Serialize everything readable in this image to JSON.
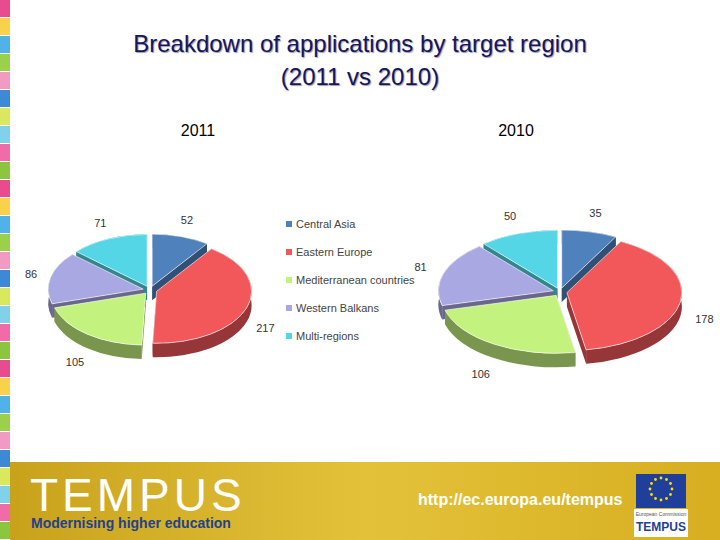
{
  "title": [
    "Breakdown of applications by target region",
    "(2011 vs 2010)"
  ],
  "chart_data": [
    {
      "type": "pie",
      "title": "2011",
      "categories": [
        "Central Asia",
        "Eastern Europe",
        "Mediterranean countries",
        "Western Balkans",
        "Multi-regions"
      ],
      "values": [
        52,
        217,
        105,
        86,
        71
      ],
      "colors": [
        "#4f81bd",
        "#f2575a",
        "#c4f27e",
        "#aaa8e2",
        "#55d6e6"
      ],
      "data_labels": true,
      "legend": "center"
    },
    {
      "type": "pie",
      "title": "2010",
      "categories": [
        "Central Asia",
        "Eastern Europe",
        "Mediterranean countries",
        "Western Balkans",
        "Multi-regions"
      ],
      "values": [
        35,
        178,
        106,
        81,
        50
      ],
      "colors": [
        "#4f81bd",
        "#f2575a",
        "#c4f27e",
        "#aaa8e2",
        "#55d6e6"
      ],
      "data_labels": true
    }
  ],
  "footer": {
    "logo": "TEMPUS",
    "tagline": "Modernising higher education",
    "url": "http://ec.europa.eu/tempus",
    "eu_label": "European Commission",
    "eu_program": "TEMPUS"
  }
}
